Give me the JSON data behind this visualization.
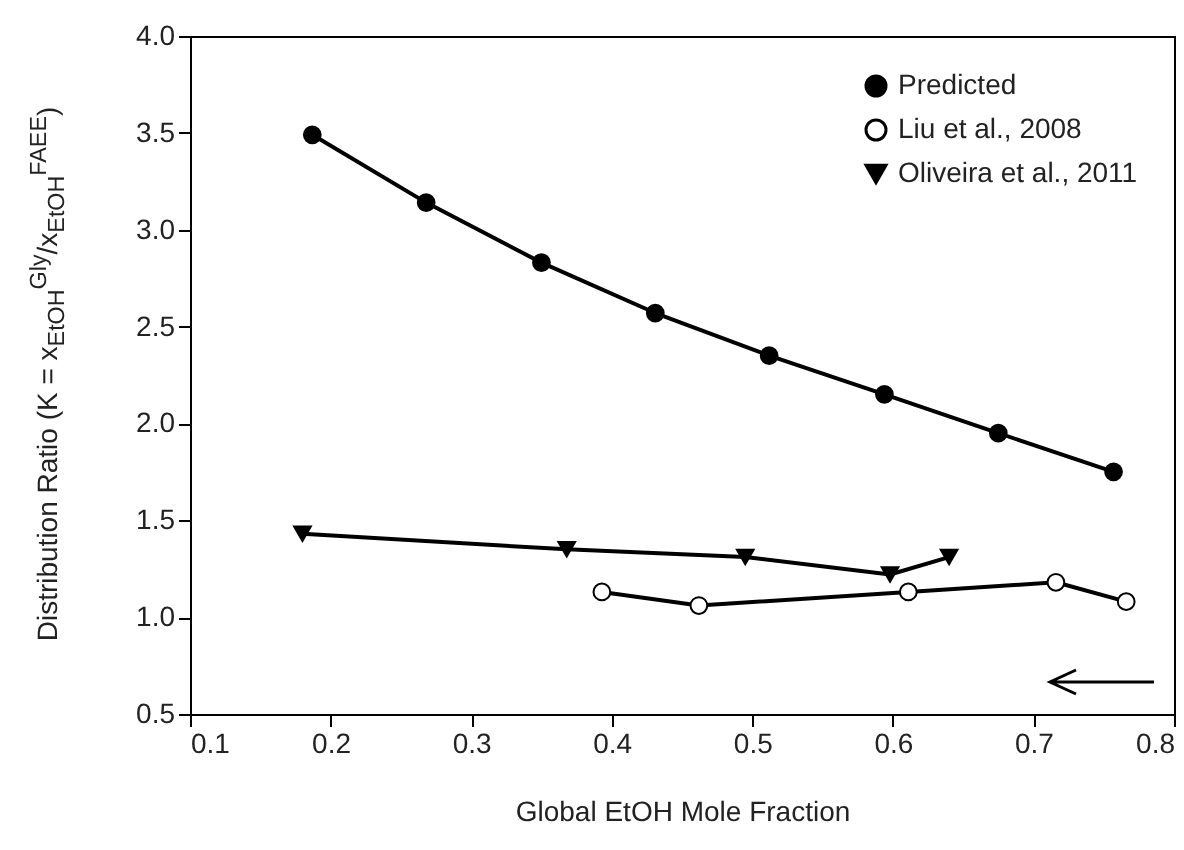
{
  "chart_data": {
    "type": "line",
    "xlabel": "Global EtOH Mole Fraction",
    "ylabel": "Distribution Ratio (K = x$_{EtOH}$$^{Gly}$/x$_{EtOH}$$^{FAEE}$)",
    "xlim": [
      0.1,
      0.8
    ],
    "xticks": [
      0.1,
      0.2,
      0.3,
      0.4,
      0.5,
      0.6,
      0.7,
      0.8
    ],
    "ylim": [
      0.5,
      4.0
    ],
    "yticks": [
      {
        "value": 0.5,
        "label": "0.5"
      },
      {
        "value": 1,
        "label": "1.0"
      },
      {
        "value": 1.5,
        "label": "1.5"
      },
      {
        "value": 2,
        "label": "2.0"
      },
      {
        "value": 2.5,
        "label": "2.5"
      },
      {
        "value": 3,
        "label": "3.0"
      },
      {
        "value": 3.5,
        "label": "3.5"
      },
      {
        "value": 4,
        "label": "4.0"
      }
    ],
    "grid": false,
    "legend": "top right",
    "series": [
      {
        "name": "Predicted",
        "color": "#000000",
        "marker": "circle",
        "x": [
          0.187,
          0.268,
          0.35,
          0.431,
          0.512,
          0.594,
          0.675,
          0.757
        ],
        "values": [
          3.49,
          3.14,
          2.83,
          2.57,
          2.35,
          2.15,
          1.95,
          1.75
        ]
      },
      {
        "name": "Liu et al., 2008",
        "color": "#000000",
        "marker": "circle",
        "colors": [
          "#ffffff",
          "#ffffff",
          "#ffffff",
          "#ffffff",
          "#ffffff"
        ],
        "x": [
          0.393,
          0.462,
          0.611,
          0.716,
          0.766
        ],
        "values": [
          1.13,
          1.06,
          1.13,
          1.18,
          1.08
        ]
      },
      {
        "name": "Oliveira et al., 2011",
        "color": "#000000",
        "marker": "triangle",
        "x": [
          0.18,
          0.368,
          0.495,
          0.598,
          0.64
        ],
        "values": [
          1.43,
          1.35,
          1.31,
          1.22,
          1.31
        ]
      }
    ]
  }
}
